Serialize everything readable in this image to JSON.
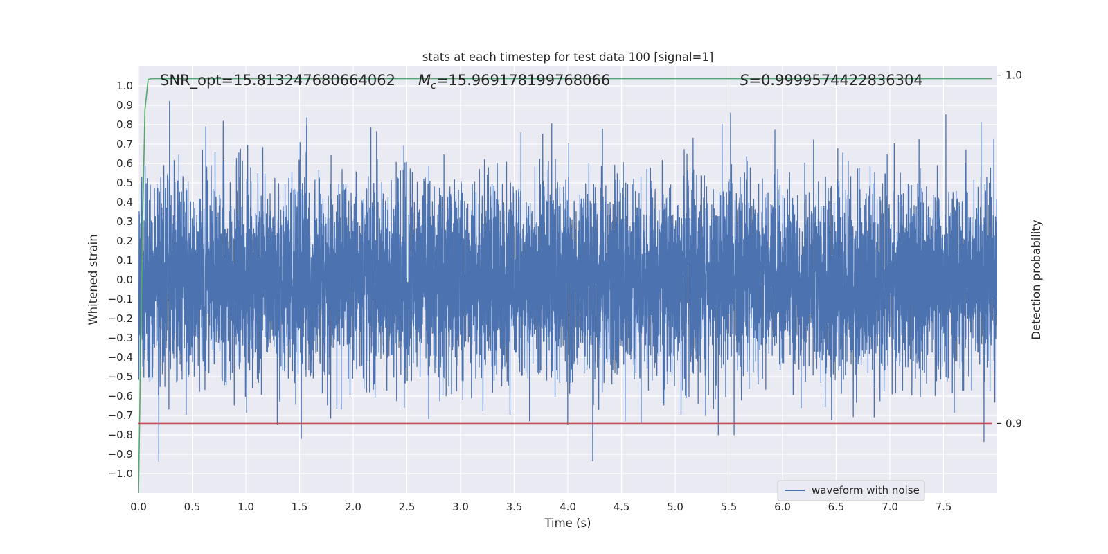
{
  "chart_data": {
    "type": "line",
    "title": "stats at each timestep for test data 100 [signal=1]",
    "xlabel": "Time (s)",
    "ylabel": "Whitened strain",
    "y2label": "Detection probability",
    "xlim": [
      0.0,
      8.0
    ],
    "ylim": [
      -1.1,
      1.1
    ],
    "y2lim": [
      0.88,
      1.0025
    ],
    "xticks": [
      "0.0",
      "0.5",
      "1.0",
      "1.5",
      "2.0",
      "2.5",
      "3.0",
      "3.5",
      "4.0",
      "4.5",
      "5.0",
      "5.5",
      "6.0",
      "6.5",
      "7.0",
      "7.5"
    ],
    "xtick_values": [
      0.0,
      0.5,
      1.0,
      1.5,
      2.0,
      2.5,
      3.0,
      3.5,
      4.0,
      4.5,
      5.0,
      5.5,
      6.0,
      6.5,
      7.0,
      7.5
    ],
    "yticks": [
      "1.0",
      "0.9",
      "0.8",
      "0.7",
      "0.6",
      "0.5",
      "0.4",
      "0.3",
      "0.2",
      "0.1",
      "0.0",
      "−0.1",
      "−0.2",
      "−0.3",
      "−0.4",
      "−0.5",
      "−0.6",
      "−0.7",
      "−0.8",
      "−0.9",
      "−1.0"
    ],
    "ytick_values": [
      1.0,
      0.9,
      0.8,
      0.7,
      0.6,
      0.5,
      0.4,
      0.3,
      0.2,
      0.1,
      0.0,
      -0.1,
      -0.2,
      -0.3,
      -0.4,
      -0.5,
      -0.6,
      -0.7,
      -0.8,
      -0.9,
      -1.0
    ],
    "y2ticks": [
      "1.0",
      "0.9"
    ],
    "y2tick_values": [
      1.0,
      0.9
    ],
    "grid": true,
    "legend": {
      "position": "bottom-right",
      "entries": [
        "waveform with noise"
      ]
    },
    "annotations": {
      "snr": "SNR_opt=15.813247680664062",
      "mc_symbol": "M",
      "mc_sub": "c",
      "mc_value": "=15.969178199768066",
      "s_symbol": "S",
      "s_value": "=0.9999574422836304"
    },
    "series": [
      {
        "name": "waveform with noise",
        "axis": "left",
        "color": "#4c72b0",
        "t_range": [
          0.0,
          8.0
        ],
        "sample_rate": 1000,
        "std": 0.25
      },
      {
        "axis": "right",
        "color": "#55a868",
        "x": [
          0.0,
          0.02,
          0.04,
          0.06,
          0.09,
          0.12,
          7.95
        ],
        "y": [
          0.88,
          0.92,
          0.96,
          0.99,
          0.9988,
          0.999,
          0.999
        ]
      },
      {
        "axis": "right",
        "color": "#c44e52",
        "x": [
          0.0,
          7.95
        ],
        "y": [
          0.9,
          0.9
        ]
      }
    ]
  },
  "colors": {
    "plot_bg": "#eaeaf2",
    "grid": "#ffffff",
    "text": "#262626"
  }
}
